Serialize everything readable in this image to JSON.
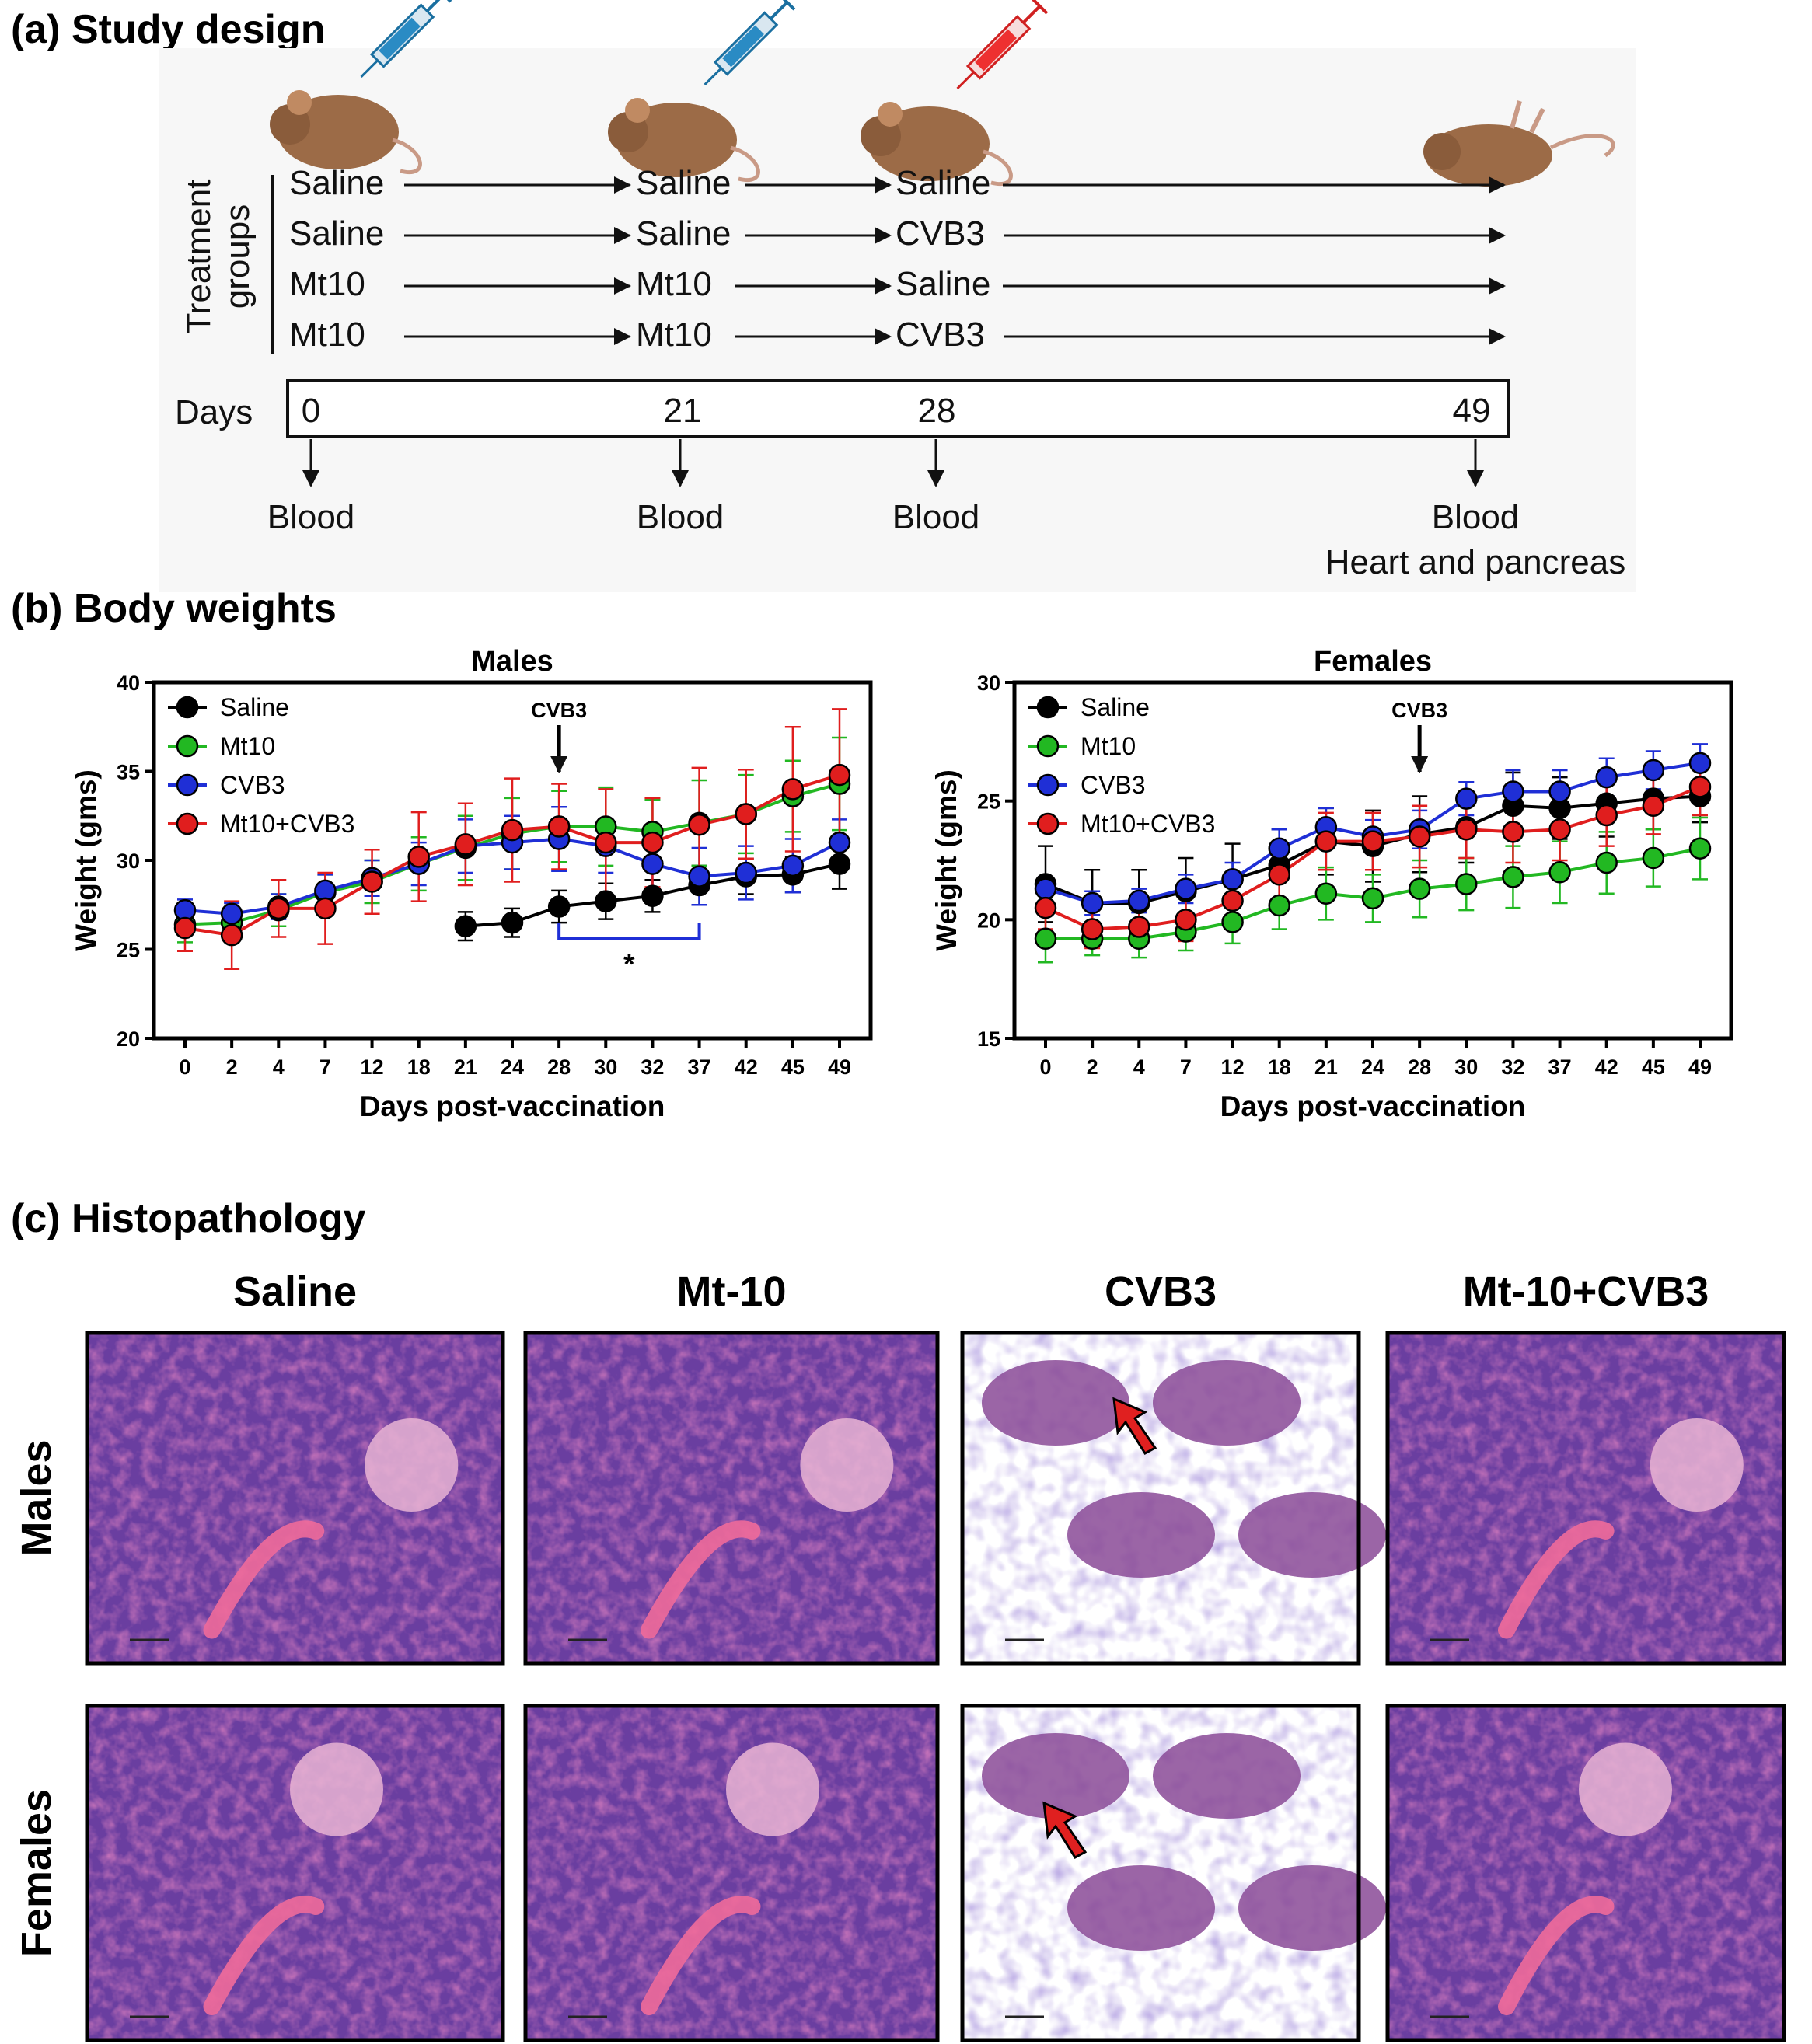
{
  "panels": {
    "a": "(a) Study design",
    "b": "(b) Body weights",
    "c": "(c) Histopathology"
  },
  "study_design": {
    "side_label": [
      "Treatment",
      "groups"
    ],
    "rows": [
      [
        "Saline",
        "Saline",
        "Saline"
      ],
      [
        "Saline",
        "Saline",
        "CVB3"
      ],
      [
        "Mt10",
        "Mt10",
        "Saline"
      ],
      [
        "Mt10",
        "Mt10",
        "CVB3"
      ]
    ],
    "days_label": "Days",
    "days": [
      "0",
      "21",
      "28",
      "49"
    ],
    "samples": [
      "Blood",
      "Blood",
      "Blood",
      "Blood"
    ],
    "final_sample_extra": "Heart and pancreas"
  },
  "chart_data": [
    {
      "type": "line",
      "title": "Males",
      "xlabel": "Days post-vaccination",
      "ylabel": "Weight (gms)",
      "ylim": [
        20,
        40
      ],
      "yticks": [
        "20",
        "25",
        "30",
        "35",
        "40"
      ],
      "categories": [
        "0",
        "2",
        "4",
        "7",
        "12",
        "18",
        "21",
        "24",
        "28",
        "30",
        "32",
        "37",
        "42",
        "45",
        "49"
      ],
      "legend_position": "top-left",
      "annotation": "CVB3",
      "annotation_at": "28",
      "significance": "*",
      "significance_range": [
        "28",
        "37"
      ],
      "significance_color": "#1f2fd6",
      "grid": false,
      "series": [
        {
          "name": "Saline",
          "color": "#000000",
          "values": [
            null,
            null,
            null,
            null,
            null,
            null,
            26.3,
            26.5,
            27.4,
            27.7,
            28.0,
            28.6,
            29.1,
            29.2,
            29.8
          ],
          "errors": [
            null,
            null,
            null,
            null,
            null,
            null,
            0.8,
            0.8,
            0.9,
            1.0,
            0.9,
            1.1,
            1.0,
            1.0,
            1.4
          ]
        },
        {
          "name": "Mt10",
          "color": "#22b822",
          "values": [
            26.4,
            26.5,
            27.2,
            28.2,
            28.8,
            29.8,
            30.7,
            31.5,
            31.9,
            31.9,
            31.6,
            32.1,
            32.6,
            33.6,
            34.3
          ],
          "errors": [
            1.0,
            0.8,
            0.9,
            1.0,
            1.2,
            1.5,
            1.8,
            2.0,
            2.0,
            2.2,
            1.8,
            2.4,
            2.2,
            2.0,
            2.6
          ]
        },
        {
          "name": "CVB3",
          "color": "#1f2fd6",
          "values": [
            27.2,
            27.0,
            27.4,
            28.3,
            29.0,
            29.8,
            30.8,
            31.0,
            31.2,
            30.8,
            29.8,
            29.1,
            29.3,
            29.7,
            31.0
          ],
          "errors": [
            0.6,
            0.6,
            0.7,
            0.9,
            1.0,
            1.2,
            1.5,
            1.5,
            1.8,
            1.5,
            1.7,
            1.6,
            1.5,
            1.5,
            1.3
          ]
        },
        {
          "name": "Mt10+CVB3",
          "color": "#e01e1e",
          "values": [
            26.2,
            25.8,
            27.3,
            27.3,
            28.8,
            30.2,
            30.9,
            31.7,
            31.9,
            31.0,
            31.0,
            32.0,
            32.6,
            34.0,
            34.8
          ],
          "errors": [
            1.3,
            1.9,
            1.6,
            2.0,
            1.8,
            2.5,
            2.3,
            2.9,
            2.4,
            3.0,
            2.5,
            3.2,
            2.5,
            3.5,
            3.7
          ]
        }
      ]
    },
    {
      "type": "line",
      "title": "Females",
      "xlabel": "Days post-vaccination",
      "ylabel": "Weight (gms)",
      "ylim": [
        15,
        30
      ],
      "yticks": [
        "15",
        "20",
        "25",
        "30"
      ],
      "categories": [
        "0",
        "2",
        "4",
        "7",
        "12",
        "18",
        "21",
        "24",
        "28",
        "30",
        "32",
        "37",
        "42",
        "45",
        "49"
      ],
      "legend_position": "top-left",
      "annotation": "CVB3",
      "annotation_at": "28",
      "grid": false,
      "series": [
        {
          "name": "Saline",
          "color": "#000000",
          "values": [
            21.5,
            20.7,
            20.7,
            21.2,
            21.7,
            22.3,
            23.3,
            23.1,
            23.6,
            23.9,
            24.8,
            24.7,
            24.9,
            25.1,
            25.2
          ],
          "errors": [
            1.6,
            1.4,
            1.4,
            1.4,
            1.5,
            1.5,
            1.4,
            1.5,
            1.6,
            1.5,
            1.4,
            1.3,
            1.4,
            1.3,
            1.1
          ]
        },
        {
          "name": "Mt10",
          "color": "#22b822",
          "values": [
            19.2,
            19.2,
            19.2,
            19.5,
            19.9,
            20.6,
            21.1,
            20.9,
            21.3,
            21.5,
            21.8,
            22.0,
            22.4,
            22.6,
            23.0
          ],
          "errors": [
            1.0,
            0.7,
            0.8,
            0.8,
            0.9,
            1.0,
            1.1,
            1.0,
            1.2,
            1.1,
            1.3,
            1.3,
            1.3,
            1.2,
            1.3
          ]
        },
        {
          "name": "CVB3",
          "color": "#1f2fd6",
          "values": [
            21.3,
            20.7,
            20.8,
            21.3,
            21.7,
            23.0,
            23.9,
            23.5,
            23.8,
            25.1,
            25.4,
            25.4,
            26.0,
            26.3,
            26.6
          ],
          "errors": [
            0.5,
            0.5,
            0.5,
            0.6,
            0.7,
            0.8,
            0.8,
            0.7,
            0.8,
            0.7,
            0.9,
            0.9,
            0.8,
            0.8,
            0.8
          ]
        },
        {
          "name": "Mt10+CVB3",
          "color": "#e01e1e",
          "values": [
            20.5,
            19.6,
            19.7,
            20.0,
            20.8,
            21.9,
            23.3,
            23.3,
            23.5,
            23.8,
            23.7,
            23.8,
            24.4,
            24.8,
            25.6
          ],
          "errors": [
            0.9,
            0.8,
            0.8,
            0.9,
            1.0,
            1.1,
            1.2,
            1.2,
            1.3,
            1.2,
            1.3,
            1.3,
            1.3,
            1.2,
            1.2
          ]
        }
      ]
    }
  ],
  "histopathology": {
    "columns": [
      "Saline",
      "Mt-10",
      "CVB3",
      "Mt-10+CVB3"
    ],
    "rows": [
      "Males",
      "Females"
    ],
    "stain_colors": {
      "background": "#6a3ea0",
      "acini": "#c84a8c",
      "eosin": "#f06a9a",
      "fat": "#ffffff"
    },
    "arrow_color": "#e02020"
  }
}
